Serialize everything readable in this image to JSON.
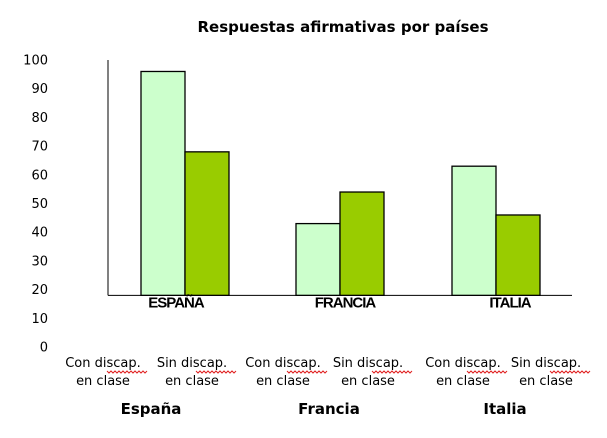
{
  "chart_data": {
    "type": "bar",
    "title": "Respuestas afirmativas por países",
    "categories": [
      "ESPAÑA",
      "FRANCIA",
      "ITALIA"
    ],
    "bottom_categories": [
      "España",
      "Francia",
      "Italia"
    ],
    "sub_labels": [
      [
        "Con discap.",
        "en clase"
      ],
      [
        "Sin discap.",
        "en clase"
      ]
    ],
    "series": [
      {
        "values": [
          96,
          43,
          63
        ],
        "color": "#ccffcc"
      },
      {
        "values": [
          68,
          54,
          46
        ],
        "color": "#99cc00"
      }
    ],
    "y_ticks": [
      "0",
      "10",
      "20",
      "30",
      "40",
      "50",
      "60",
      "70",
      "80",
      "90",
      "100"
    ],
    "ylim": [
      0,
      100
    ],
    "baseline": 18,
    "grid": false,
    "legend": "none",
    "border_color": "#000000"
  }
}
